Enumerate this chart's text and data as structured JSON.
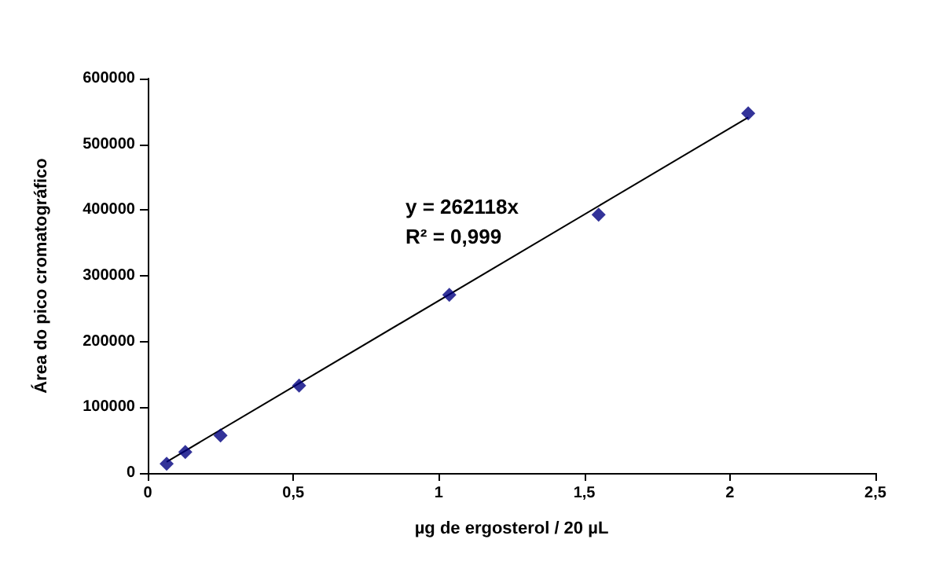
{
  "chart_data": {
    "type": "scatter",
    "xlabel": "µg de ergosterol / 20 µL",
    "ylabel": "Área do pico cromatográfico",
    "annotations": [
      "y = 262118x",
      "R² = 0,999"
    ],
    "series": [
      {
        "color": "#000080",
        "marker": "diamond",
        "x": [
          0.065,
          0.129,
          0.25,
          0.52,
          1.036,
          1.549,
          2.063
        ],
        "values": [
          14000,
          32000,
          57000,
          133000,
          271000,
          393000,
          547000
        ]
      },
      {
        "type": "line",
        "color": "#000000",
        "marker": "none",
        "line_style": "solid",
        "x": [
          0.065,
          2.063
        ],
        "values": [
          17000,
          541000
        ]
      }
    ],
    "xlim": [
      0,
      2.5
    ],
    "xticks": [
      0,
      {
        "value": 0.5,
        "label": "0,5"
      },
      1,
      {
        "value": 1.5,
        "label": "1,5"
      },
      2,
      {
        "value": 2.5,
        "label": "2,5"
      }
    ],
    "ylim": [
      0,
      600000
    ],
    "yticks": [
      0,
      100000,
      200000,
      300000,
      400000,
      500000,
      600000
    ],
    "grid": false
  }
}
